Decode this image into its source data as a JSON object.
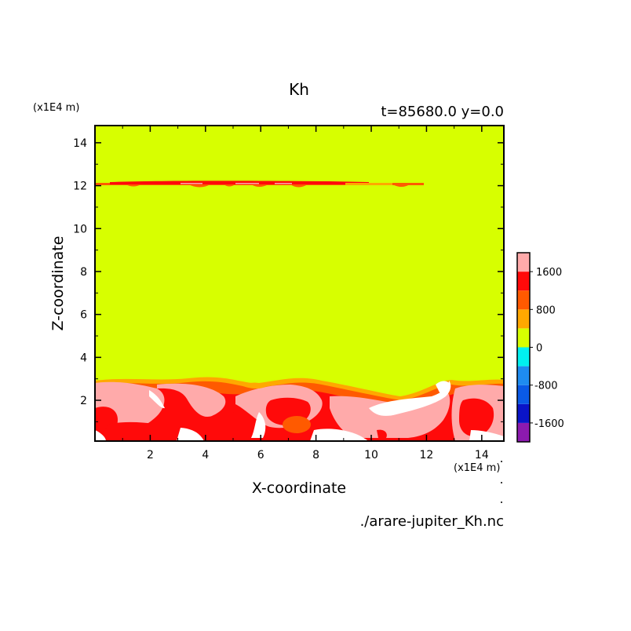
{
  "chart_data": {
    "type": "heatmap",
    "title": "Kh",
    "subtitle": "t=85680.0 y=0.0",
    "xlabel": "X-coordinate",
    "ylabel": "Z-coordinate",
    "x_unit": "(x1E4 m)",
    "y_unit": "(x1E4 m)",
    "source_file": "./arare-jupiter_Kh.nc",
    "xlim": [
      0.0,
      14.8
    ],
    "ylim": [
      0.1,
      14.8
    ],
    "x_ticks": [
      2,
      4,
      6,
      8,
      10,
      12,
      14
    ],
    "y_ticks": [
      2,
      4,
      6,
      8,
      10,
      12,
      14
    ],
    "colorbar": {
      "levels": [
        -2000,
        -1600,
        -1200,
        -800,
        -400,
        0,
        400,
        800,
        1200,
        1600,
        2000
      ],
      "labeled_ticks": [
        -1600,
        -800,
        0,
        800,
        1600
      ],
      "colors": [
        "#8c1aaf",
        "#0a14c8",
        "#0a5ae6",
        "#1e8cf0",
        "#00f0f0",
        "#d7ff00",
        "#ffa800",
        "#ff5a00",
        "#ff0a0a",
        "#ffaaaa",
        "#ffffff"
      ]
    },
    "field_description": {
      "background_value_range": [
        0,
        400
      ],
      "upper_layer_z": 12.2,
      "upper_layer_x_range": [
        0.0,
        12.0
      ],
      "lower_turbulent_layer_top_z": 3.0
    }
  }
}
